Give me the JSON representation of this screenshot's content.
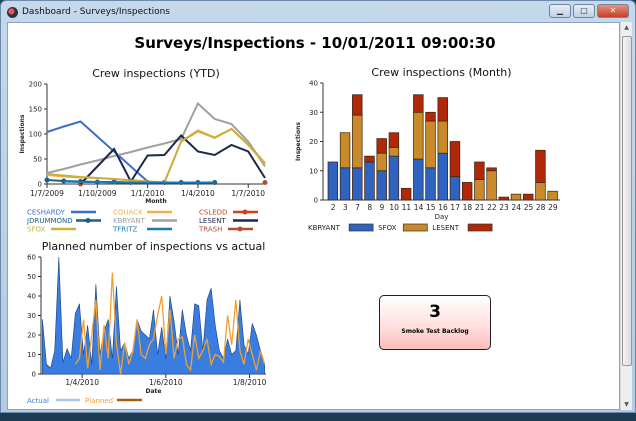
{
  "window": {
    "title": "Dashboard - Surveys/Inspections",
    "buttons": [
      "minimize",
      "maximize",
      "close"
    ]
  },
  "page_title": "Surveys/Inspections - 10/01/2011 09:00:30",
  "kpi": {
    "value": "3",
    "label": "Smoke Test Backlog",
    "color": "#ffc0c0"
  },
  "chart_data": [
    {
      "type": "line",
      "title": "Crew inspections (YTD)",
      "xlabel": "Month",
      "ylabel": "Inspections",
      "ylim": [
        0,
        200
      ],
      "yticks": [
        0,
        50,
        100,
        150,
        200
      ],
      "xticks": [
        "1/7/2009",
        "1/10/2009",
        "1/1/2010",
        "1/4/2010",
        "1/7/2010"
      ],
      "x_months": [
        "2009-07",
        "2009-08",
        "2009-09",
        "2009-10",
        "2009-11",
        "2009-12",
        "2010-01",
        "2010-02",
        "2010-03",
        "2010-04",
        "2010-05",
        "2010-06",
        "2010-07",
        "2010-08"
      ],
      "series": [
        {
          "name": "CESHARDY",
          "color": "#3a6fd0",
          "values": [
            104,
            115,
            125,
            95,
            65,
            35,
            5,
            null,
            null,
            null,
            null,
            null,
            null,
            null
          ]
        },
        {
          "name": "CQUACK",
          "color": "#f0b050",
          "values": [
            18,
            15,
            13,
            12,
            10,
            8,
            5,
            3,
            85,
            105,
            92,
            110,
            80,
            42
          ]
        },
        {
          "name": "CSLEDD",
          "color": "#d04020",
          "marker": true,
          "values": [
            null,
            null,
            0,
            null,
            null,
            null,
            null,
            null,
            null,
            null,
            null,
            null,
            null,
            null
          ]
        },
        {
          "name": "JDRUMMOND",
          "color": "#1f5f80",
          "marker": true,
          "values": [
            8,
            6,
            5,
            4,
            4,
            3,
            3,
            3,
            3,
            3,
            3,
            null,
            null,
            null
          ]
        },
        {
          "name": "KBRYANT",
          "color": "#a0a0a0",
          "values": [
            22,
            30,
            39,
            47,
            56,
            64,
            73,
            81,
            90,
            161,
            130,
            120,
            85,
            35
          ]
        },
        {
          "name": "LESENT",
          "color": "#1c2a4a",
          "values": [
            null,
            null,
            0,
            35,
            70,
            5,
            57,
            58,
            97,
            65,
            58,
            78,
            65,
            12
          ]
        },
        {
          "name": "SFOX",
          "color": "#c8b040",
          "values": [
            20,
            17,
            14,
            12,
            10,
            7,
            5,
            3,
            85,
            107,
            93,
            110,
            78,
            40
          ]
        },
        {
          "name": "TFRITZ",
          "color": "#1a7ab8",
          "values": [
            null,
            5,
            4,
            4,
            3,
            3,
            3,
            3,
            3,
            3,
            3,
            null,
            null,
            null
          ]
        },
        {
          "name": "TRASH",
          "color": "#b05030",
          "marker": true,
          "values": [
            null,
            null,
            null,
            null,
            null,
            null,
            null,
            null,
            null,
            null,
            null,
            null,
            null,
            3
          ]
        }
      ]
    },
    {
      "type": "bar",
      "stacked": true,
      "title": "Crew inspections (Month)",
      "xlabel": "Day",
      "ylabel": "Inspections",
      "ylim": [
        0,
        40
      ],
      "yticks": [
        0,
        10,
        20,
        30,
        40
      ],
      "categories": [
        "2",
        "3",
        "7",
        "8",
        "9",
        "10",
        "11",
        "14",
        "15",
        "16",
        "17",
        "18",
        "21",
        "22",
        "23",
        "24",
        "25",
        "28",
        "29"
      ],
      "series": [
        {
          "name": "KBRYANT",
          "color": "#2f63c0",
          "values": [
            13,
            11,
            11,
            13,
            10,
            15,
            0,
            14,
            11,
            16,
            8,
            0,
            0,
            0,
            0,
            0,
            0,
            0,
            0
          ]
        },
        {
          "name": "SFOX",
          "color": "#c88a2a",
          "values": [
            0,
            12,
            18,
            0,
            6,
            3,
            0,
            16,
            16,
            11,
            0,
            0,
            7,
            10,
            0,
            2,
            0,
            6,
            3
          ]
        },
        {
          "name": "LESENT",
          "color": "#b02808",
          "values": [
            0,
            0,
            7,
            2,
            5,
            5,
            4,
            6,
            3,
            8,
            12,
            6,
            6,
            1,
            1,
            0,
            2,
            11,
            0
          ]
        }
      ]
    },
    {
      "type": "area",
      "title": "Planned number of inspections vs actual",
      "xlabel": "Date",
      "ylabel": "",
      "ylim": [
        0,
        60
      ],
      "yticks": [
        0,
        10,
        20,
        30,
        40,
        50,
        60
      ],
      "xticks": [
        "1/4/2010",
        "1/6/2010",
        "1/8/2010"
      ],
      "x": [
        "2010-03-03",
        "2010-03-06",
        "2010-03-09",
        "2010-03-12",
        "2010-03-15",
        "2010-03-18",
        "2010-03-21",
        "2010-03-24",
        "2010-03-27",
        "2010-03-30",
        "2010-04-02",
        "2010-04-05",
        "2010-04-08",
        "2010-04-11",
        "2010-04-14",
        "2010-04-17",
        "2010-04-20",
        "2010-04-23",
        "2010-04-26",
        "2010-04-29",
        "2010-05-02",
        "2010-05-05",
        "2010-05-08",
        "2010-05-11",
        "2010-05-14",
        "2010-05-17",
        "2010-05-20",
        "2010-05-23",
        "2010-05-26",
        "2010-05-29",
        "2010-06-01",
        "2010-06-04",
        "2010-06-07",
        "2010-06-10",
        "2010-06-13",
        "2010-06-16",
        "2010-06-19",
        "2010-06-22",
        "2010-06-25",
        "2010-06-28",
        "2010-07-01",
        "2010-07-04",
        "2010-07-07",
        "2010-07-10",
        "2010-07-13",
        "2010-07-16",
        "2010-07-19",
        "2010-07-22",
        "2010-07-25",
        "2010-07-28",
        "2010-07-31",
        "2010-08-03",
        "2010-08-06",
        "2010-08-09",
        "2010-08-12"
      ],
      "series": [
        {
          "name": "Actual",
          "color": "#3a7de0",
          "values": [
            28,
            5,
            3,
            12,
            60,
            6,
            13,
            8,
            31,
            36,
            10,
            25,
            5,
            46,
            10,
            22,
            28,
            8,
            45,
            12,
            16,
            8,
            12,
            28,
            22,
            20,
            18,
            33,
            10,
            24,
            8,
            40,
            27,
            10,
            33,
            20,
            12,
            36,
            35,
            12,
            38,
            44,
            25,
            12,
            8,
            18,
            10,
            12,
            38,
            15,
            10,
            26,
            20,
            12,
            5
          ]
        },
        {
          "name": "Planned",
          "color": "#f0a030",
          "values": [
            null,
            null,
            null,
            null,
            null,
            null,
            null,
            null,
            5,
            8,
            28,
            3,
            20,
            38,
            2,
            25,
            8,
            52,
            15,
            0,
            16,
            5,
            12,
            28,
            10,
            8,
            15,
            18,
            30,
            40,
            10,
            33,
            8,
            18,
            19,
            5,
            2,
            20,
            8,
            12,
            18,
            5,
            10,
            9,
            6,
            30,
            15,
            38,
            12,
            5,
            18,
            10,
            2,
            12,
            5
          ]
        }
      ]
    }
  ]
}
